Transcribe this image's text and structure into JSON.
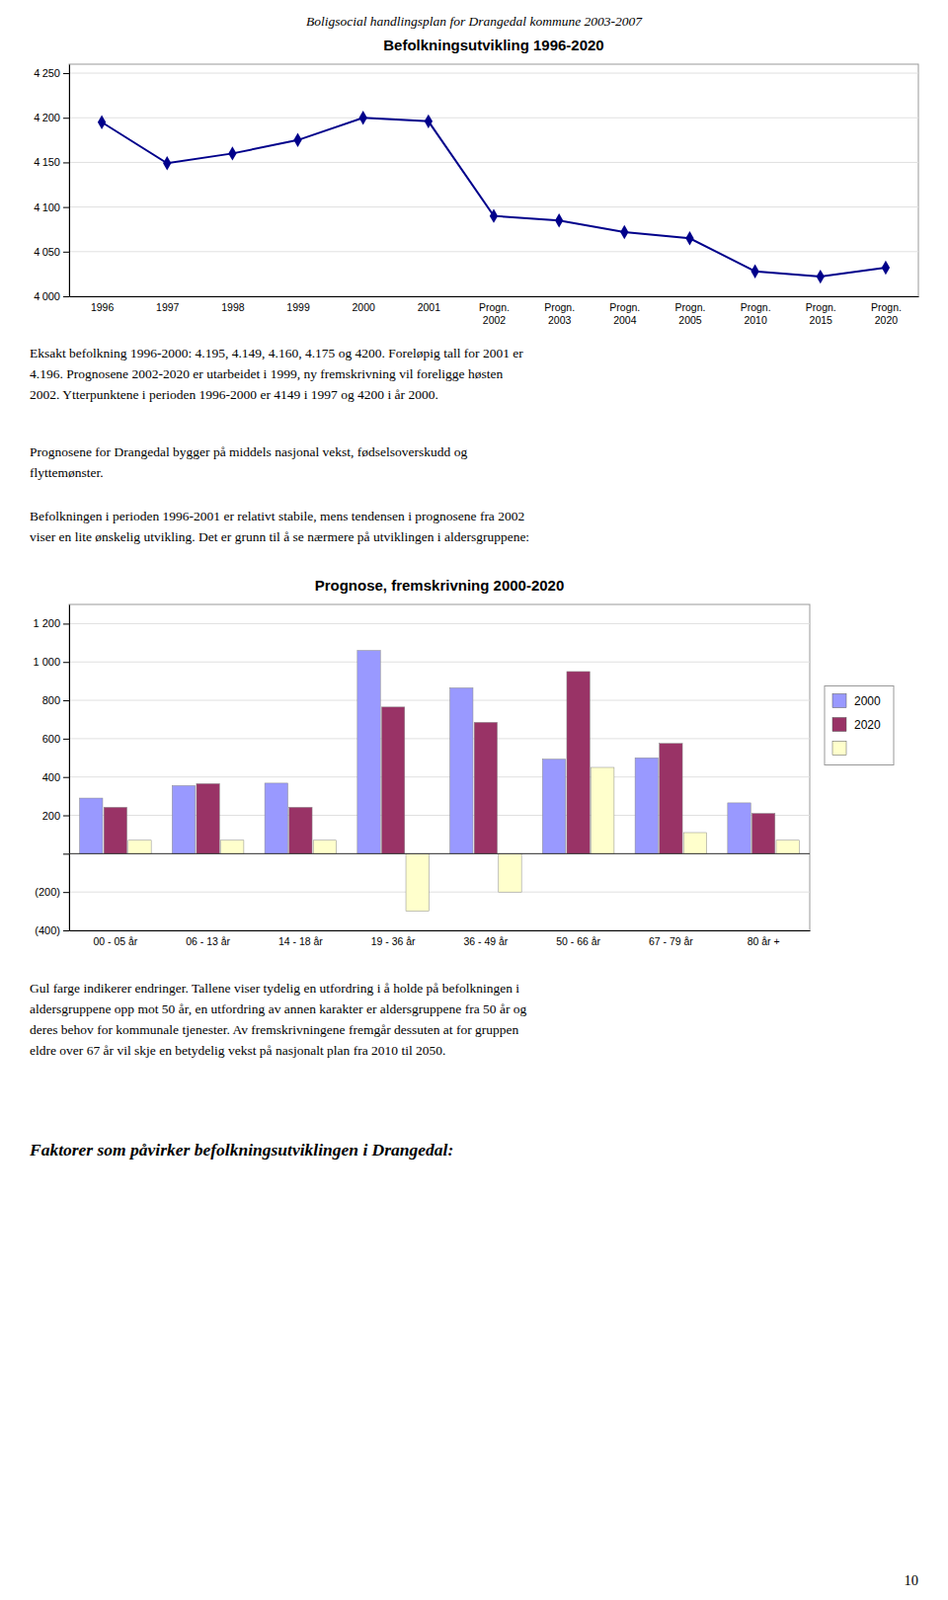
{
  "page_title": "Boligsocial handlingsplan for Drangedal kommune 2003-2007",
  "paragraphs": [
    "Eksakt befolkning 1996-2000: 4.195, 4.149, 4.160, 4.175 og 4200. Foreløpig tall for 2001 er\n4.196. Prognosene 2002-2020 er utarbeidet i 1999, ny fremskrivning vil foreligge høsten\n2002. Ytterpunktene i perioden 1996-2000 er 4149 i 1997 og 4200 i år 2000.",
    "Prognosene for Drangedal bygger på middels nasjonal vekst, fødselsoverskudd og\nflyttemønster.",
    "Befolkningen i perioden 1996-2001 er relativt stabile, mens tendensen i prognosene fra 2002\nviser en lite ønskelig utvikling. Det er grunn til å se nærmere på utviklingen i aldersgruppene:",
    "Gul farge indikerer endringer. Tallene viser tydelig en utfordring i å holde på befolkningen i\naldersgruppene opp mot 50 år, en utfordring av annen karakter er aldersgruppene fra 50 år og\nderes behov for kommunale tjenester. Av fremskrivningene fremgår dessuten at for gruppen\neldre over 67 år vil skje en betydelig vekst på nasjonalt plan fra 2010 til 2050."
  ],
  "heading": "Faktorer som påvirker befolkningsutviklingen i Drangedal:",
  "page_number": "10",
  "chart_data": [
    {
      "type": "line",
      "title": "Befolkningsutvikling 1996-2020",
      "categories": [
        "1996",
        "1997",
        "1998",
        "1999",
        "2000",
        "2001",
        "Progn.\n2002",
        "Progn.\n2003",
        "Progn.\n2004",
        "Progn.\n2005",
        "Progn.\n2010",
        "Progn.\n2015",
        "Progn.\n2020"
      ],
      "values": [
        4195,
        4149,
        4160,
        4175,
        4200,
        4196,
        4090,
        4085,
        4072,
        4065,
        4028,
        4022,
        4032
      ],
      "color": "#00008B",
      "marker": "diamond",
      "ylim": [
        4000,
        4260
      ],
      "yticks": [
        {
          "value": 4000,
          "label": "4 000"
        },
        {
          "value": 4050,
          "label": "4 050"
        },
        {
          "value": 4100,
          "label": "4 100"
        },
        {
          "value": 4150,
          "label": "4 150"
        },
        {
          "value": 4200,
          "label": "4 200"
        },
        {
          "value": 4250,
          "label": "4 250"
        }
      ],
      "grid": true
    },
    {
      "type": "bar",
      "title": "Prognose, fremskrivning 2000-2020",
      "categories": [
        "00 - 05 år",
        "06 - 13 år",
        "14 - 18 år",
        "19 - 36 år",
        "36 - 49 år",
        "50 - 66 år",
        "67 - 79 år",
        "80 år +"
      ],
      "series": [
        {
          "name": "2000",
          "color": "#9999FF",
          "values": [
            290,
            355,
            368,
            1060,
            865,
            493,
            500,
            265
          ]
        },
        {
          "name": "2020",
          "color": "#993366",
          "values": [
            242,
            365,
            242,
            765,
            685,
            950,
            575,
            210
          ]
        },
        {
          "color": "#FFFFCC",
          "values": [
            70,
            70,
            70,
            -300,
            -200,
            450,
            110,
            70
          ]
        }
      ],
      "ylim": [
        -400,
        1300
      ],
      "yticks": [
        {
          "value": -400,
          "label": "(400)"
        },
        {
          "value": -200,
          "label": "(200)"
        },
        {
          "value": 0,
          "label": null
        },
        200,
        400,
        600,
        800,
        {
          "value": 1000,
          "label": "1 000"
        },
        {
          "value": 1200,
          "label": "1 200"
        }
      ],
      "grid": true,
      "legend": "right"
    }
  ]
}
